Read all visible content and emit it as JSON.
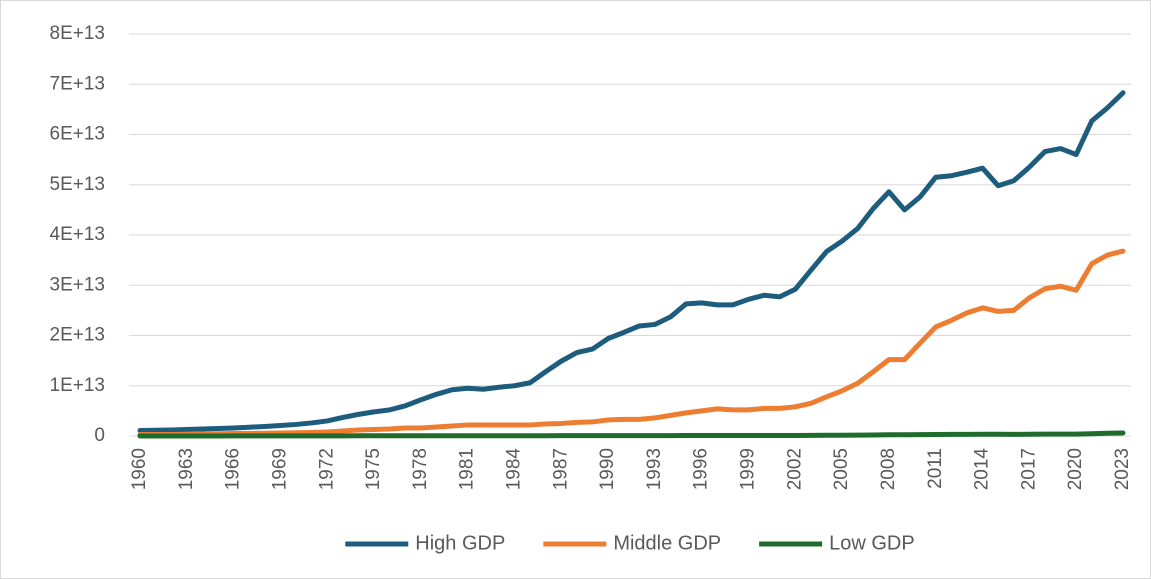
{
  "chart_data": {
    "type": "line",
    "x": [
      1960,
      1961,
      1962,
      1963,
      1964,
      1965,
      1966,
      1967,
      1968,
      1969,
      1970,
      1971,
      1972,
      1973,
      1974,
      1975,
      1976,
      1977,
      1978,
      1979,
      1980,
      1981,
      1982,
      1983,
      1984,
      1985,
      1986,
      1987,
      1988,
      1989,
      1990,
      1991,
      1992,
      1993,
      1994,
      1995,
      1996,
      1997,
      1998,
      1999,
      2000,
      2001,
      2002,
      2003,
      2004,
      2005,
      2006,
      2007,
      2008,
      2009,
      2010,
      2011,
      2012,
      2013,
      2014,
      2015,
      2016,
      2017,
      2018,
      2019,
      2020,
      2021,
      2022,
      2023
    ],
    "xlim": [
      1960,
      2023
    ],
    "xticks": [
      1960,
      1963,
      1966,
      1969,
      1972,
      1975,
      1978,
      1981,
      1984,
      1987,
      1990,
      1993,
      1996,
      1999,
      2002,
      2005,
      2008,
      2011,
      2014,
      2017,
      2020,
      2023
    ],
    "ylim": [
      0,
      80000000000000.0
    ],
    "yticks": [
      0,
      {
        "value": 10000000000000.0,
        "label": "1E+13"
      },
      {
        "value": 20000000000000.0,
        "label": "2E+13"
      },
      {
        "value": 30000000000000.0,
        "label": "3E+13"
      },
      {
        "value": 40000000000000.0,
        "label": "4E+13"
      },
      {
        "value": 50000000000000.0,
        "label": "5E+13"
      },
      {
        "value": 60000000000000.0,
        "label": "6E+13"
      },
      {
        "value": 70000000000000.0,
        "label": "7E+13"
      },
      {
        "value": 80000000000000.0,
        "label": "8E+13"
      }
    ],
    "grid": true,
    "legend": "bottom",
    "series": [
      {
        "name": "High GDP",
        "color": "#1d5c7d",
        "values": [
          1100000000000.0,
          1150000000000.0,
          1200000000000.0,
          1300000000000.0,
          1400000000000.0,
          1500000000000.0,
          1600000000000.0,
          1750000000000.0,
          1900000000000.0,
          2100000000000.0,
          2300000000000.0,
          2600000000000.0,
          3000000000000.0,
          3700000000000.0,
          4300000000000.0,
          4800000000000.0,
          5200000000000.0,
          6000000000000.0,
          7200000000000.0,
          8300000000000.0,
          9200000000000.0,
          9500000000000.0,
          9300000000000.0,
          9700000000000.0,
          10000000000000.0,
          10600000000000.0,
          12800000000000.0,
          14900000000000.0,
          16600000000000.0,
          17300000000000.0,
          19400000000000.0,
          20600000000000.0,
          21900000000000.0,
          22200000000000.0,
          23700000000000.0,
          26300000000000.0,
          26500000000000.0,
          26100000000000.0,
          26100000000000.0,
          27200000000000.0,
          28000000000000.0,
          27700000000000.0,
          29200000000000.0,
          33000000000000.0,
          36700000000000.0,
          38800000000000.0,
          41300000000000.0,
          45300000000000.0,
          48600000000000.0,
          45000000000000.0,
          47600000000000.0,
          51500000000000.0,
          51800000000000.0,
          52500000000000.0,
          53300000000000.0,
          49800000000000.0,
          50800000000000.0,
          53500000000000.0,
          56600000000000.0,
          57200000000000.0,
          56000000000000.0,
          62700000000000.0,
          65300000000000.0,
          68300000000000.0
        ]
      },
      {
        "name": "Middle GDP",
        "color": "#ed7d31",
        "values": [
          300000000000.0,
          300000000000.0,
          300000000000.0,
          350000000000.0,
          400000000000.0,
          450000000000.0,
          500000000000.0,
          500000000000.0,
          550000000000.0,
          600000000000.0,
          650000000000.0,
          700000000000.0,
          800000000000.0,
          1000000000000.0,
          1200000000000.0,
          1300000000000.0,
          1400000000000.0,
          1600000000000.0,
          1600000000000.0,
          1800000000000.0,
          2000000000000.0,
          2200000000000.0,
          2200000000000.0,
          2200000000000.0,
          2200000000000.0,
          2200000000000.0,
          2400000000000.0,
          2500000000000.0,
          2700000000000.0,
          2800000000000.0,
          3200000000000.0,
          3300000000000.0,
          3300000000000.0,
          3600000000000.0,
          4100000000000.0,
          4600000000000.0,
          5000000000000.0,
          5400000000000.0,
          5200000000000.0,
          5200000000000.0,
          5500000000000.0,
          5500000000000.0,
          5800000000000.0,
          6500000000000.0,
          7800000000000.0,
          9000000000000.0,
          10500000000000.0,
          12800000000000.0,
          15200000000000.0,
          15200000000000.0,
          18500000000000.0,
          21700000000000.0,
          23000000000000.0,
          24500000000000.0,
          25500000000000.0,
          24800000000000.0,
          25000000000000.0,
          27500000000000.0,
          29300000000000.0,
          29800000000000.0,
          29000000000000.0,
          34300000000000.0,
          36000000000000.0,
          36800000000000.0
        ]
      },
      {
        "name": "Low GDP",
        "color": "#1e6b2c",
        "values": [
          10000000000.0,
          10000000000.0,
          10000000000.0,
          10000000000.0,
          10000000000.0,
          10000000000.0,
          20000000000.0,
          20000000000.0,
          20000000000.0,
          20000000000.0,
          20000000000.0,
          20000000000.0,
          30000000000.0,
          30000000000.0,
          40000000000.0,
          40000000000.0,
          40000000000.0,
          50000000000.0,
          50000000000.0,
          60000000000.0,
          60000000000.0,
          60000000000.0,
          60000000000.0,
          60000000000.0,
          60000000000.0,
          60000000000.0,
          60000000000.0,
          70000000000.0,
          70000000000.0,
          70000000000.0,
          80000000000.0,
          80000000000.0,
          80000000000.0,
          80000000000.0,
          80000000000.0,
          90000000000.0,
          100000000000.0,
          100000000000.0,
          100000000000.0,
          100000000000.0,
          100000000000.0,
          100000000000.0,
          100000000000.0,
          120000000000.0,
          140000000000.0,
          160000000000.0,
          180000000000.0,
          200000000000.0,
          250000000000.0,
          250000000000.0,
          280000000000.0,
          300000000000.0,
          320000000000.0,
          330000000000.0,
          350000000000.0,
          340000000000.0,
          330000000000.0,
          350000000000.0,
          370000000000.0,
          380000000000.0,
          380000000000.0,
          450000000000.0,
          550000000000.0,
          600000000000.0
        ]
      }
    ]
  }
}
